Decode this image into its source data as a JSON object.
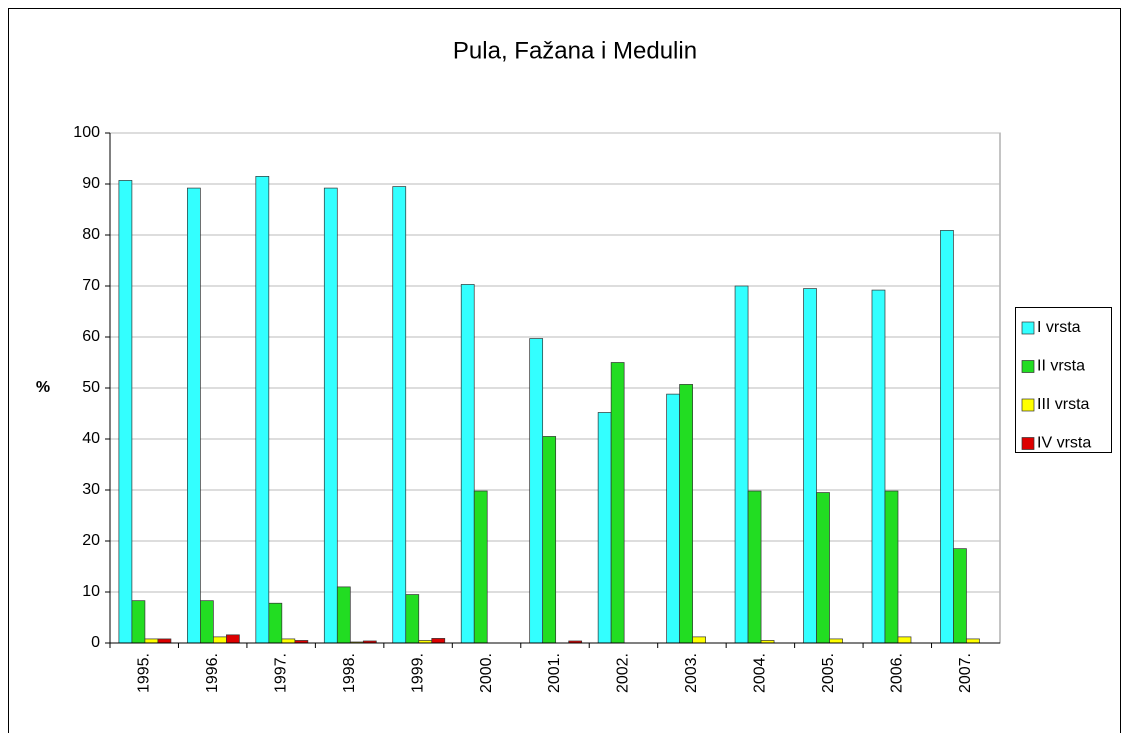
{
  "chart_data": {
    "type": "bar",
    "title": "Pula, Fažana i Medulin",
    "y_label": "%",
    "categories": [
      "1995.",
      "1996.",
      "1997.",
      "1998.",
      "1999.",
      "2000.",
      "2001.",
      "2002.",
      "2003.",
      "2004.",
      "2005.",
      "2006.",
      "2007."
    ],
    "series": [
      {
        "name": "I vrsta",
        "color": "#33ffff",
        "values": [
          90.7,
          89.2,
          91.5,
          89.2,
          89.5,
          70.3,
          59.7,
          45.2,
          48.8,
          70.0,
          69.5,
          69.2,
          80.9
        ]
      },
      {
        "name": "II vrsta",
        "color": "#22dd22",
        "values": [
          8.3,
          8.3,
          7.8,
          11.0,
          9.5,
          29.8,
          40.5,
          55.0,
          50.7,
          29.8,
          29.5,
          29.8,
          18.5
        ]
      },
      {
        "name": "III vrsta",
        "color": "#ffff00",
        "values": [
          0.8,
          1.2,
          0.8,
          0.2,
          0.5,
          0,
          0,
          0,
          1.2,
          0.5,
          0.8,
          1.2,
          0.8
        ]
      },
      {
        "name": "IV vrsta",
        "color": "#dd0000",
        "values": [
          0.8,
          1.6,
          0.5,
          0.4,
          0.9,
          0,
          0.4,
          0,
          0,
          0,
          0,
          0,
          0
        ]
      }
    ],
    "ylim": [
      0,
      100
    ],
    "yticks": [
      0,
      10,
      20,
      30,
      40,
      50,
      60,
      70,
      80,
      90,
      100
    ],
    "grid": true,
    "legend": "right"
  }
}
